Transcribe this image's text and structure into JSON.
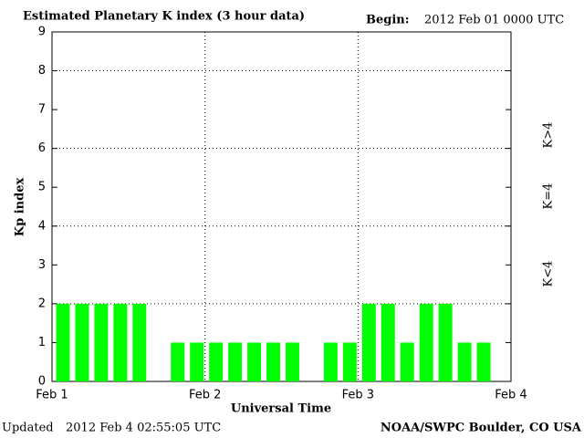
{
  "chart_data": {
    "type": "bar",
    "title": "Estimated Planetary K index (3 hour data)",
    "begin_label": "Begin:",
    "begin": "2012 Feb 01 0000 UTC",
    "y_label": "Kp index",
    "x_label": "Universal Time",
    "updated_label": "Updated",
    "updated": "2012 Feb  4 02:55:05 UTC",
    "source": "NOAA/SWPC Boulder, CO USA",
    "x_tick_labels": [
      "Feb 1",
      "Feb 2",
      "Feb 3",
      "Feb 4"
    ],
    "series": [
      {
        "color": "#00ff00",
        "values": [
          2,
          2,
          2,
          2,
          2,
          null,
          1,
          1,
          1,
          1,
          1,
          1,
          1,
          null,
          1,
          1,
          2,
          2,
          1,
          2,
          2,
          1,
          1,
          null
        ]
      }
    ],
    "ylim": [
      0,
      9
    ],
    "yticks": [
      0,
      1,
      2,
      3,
      4,
      5,
      6,
      7,
      8,
      9
    ],
    "grid_yticks": [
      2,
      4,
      6,
      8
    ],
    "grid": true,
    "legend": [
      {
        "label": "K<4",
        "color": "#00ff00"
      },
      {
        "label": "K=4",
        "color": "#ffcc00"
      },
      {
        "label": "K>4",
        "color": "#ff2200"
      }
    ]
  }
}
